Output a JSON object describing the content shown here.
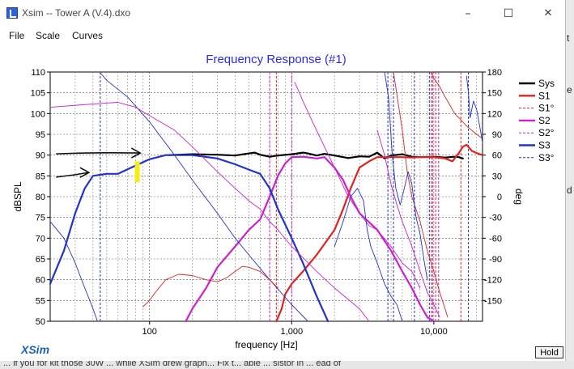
{
  "window": {
    "title": "Xsim -- Tower A (V.4).dxo",
    "minimize_glyph": "–",
    "maximize_glyph": "☐",
    "close_glyph": "✕"
  },
  "menu": [
    {
      "label": "File"
    },
    {
      "label": "Scale"
    },
    {
      "label": "Curves"
    }
  ],
  "brand": {
    "logo_text": "XSim"
  },
  "hold_button": {
    "label": "Hold"
  },
  "right_edge_chars": [
    "t",
    "e",
    "d"
  ],
  "bottom_partial_text": "... if you for kit those 30W ... while XSim drew graph... Fix t... able ... sistor in ... ead of",
  "colors": {
    "sys": "#000000",
    "s1": "#e0231e",
    "s2": "#cc22cc",
    "s3": "#2233cc",
    "title": "#2a2aee",
    "annotation_black": "#111111",
    "annotation_yellow": "#f5ee10"
  },
  "chart_data": {
    "type": "line",
    "title": "Frequency Response (#1)",
    "xlabel": "frequency [Hz]",
    "ylabel": "dBSPL",
    "ylabel_right": "deg",
    "x_scale": "log",
    "xlim": [
      20,
      22000
    ],
    "ylim": [
      50,
      110
    ],
    "ylim_right": [
      -180,
      180
    ],
    "x_tick_labels": [
      {
        "value": 100,
        "label": "100"
      },
      {
        "value": 1000,
        "label": "1,000"
      },
      {
        "value": 10000,
        "label": "10,000"
      }
    ],
    "y_ticks": [
      50,
      55,
      60,
      65,
      70,
      75,
      80,
      85,
      90,
      95,
      100,
      105,
      110
    ],
    "y_ticks_right": [
      -150,
      -120,
      -90,
      -60,
      -30,
      0,
      30,
      60,
      90,
      120,
      150,
      180
    ],
    "grid": true,
    "legend_position": "right",
    "legend": [
      {
        "label": "Sys",
        "color": "#000000",
        "style": "solid-thick"
      },
      {
        "label": "S1",
        "color": "#e0231e",
        "style": "solid-thick"
      },
      {
        "label": "S1°",
        "color": "#e0231e",
        "style": "dashed"
      },
      {
        "label": "S2",
        "color": "#cc22cc",
        "style": "solid-thick"
      },
      {
        "label": "S2°",
        "color": "#cc22cc",
        "style": "dashed"
      },
      {
        "label": "S3",
        "color": "#2233cc",
        "style": "solid-thick"
      },
      {
        "label": "S3°",
        "color": "#2233cc",
        "style": "dashed"
      }
    ],
    "series": [
      {
        "name": "Sys",
        "axis": "left",
        "color": "#000000",
        "width": 2.2,
        "points": [
          [
            135,
            90
          ],
          [
            200,
            90.2
          ],
          [
            300,
            90.1
          ],
          [
            400,
            89.9
          ],
          [
            500,
            90.4
          ],
          [
            550,
            90.6
          ],
          [
            600,
            90.1
          ],
          [
            700,
            89.6
          ],
          [
            800,
            89.9
          ],
          [
            1000,
            90.2
          ],
          [
            1200,
            90.6
          ],
          [
            1300,
            90.4
          ],
          [
            1500,
            89.9
          ],
          [
            1700,
            90.3
          ],
          [
            2000,
            89.9
          ],
          [
            2500,
            89.3
          ],
          [
            3000,
            89.7
          ],
          [
            3500,
            89.6
          ],
          [
            4000,
            90.6
          ],
          [
            4500,
            89.2
          ],
          [
            5000,
            89.9
          ],
          [
            6000,
            90.2
          ],
          [
            7000,
            89.6
          ],
          [
            8000,
            89.5
          ],
          [
            10000,
            89.6
          ],
          [
            12000,
            89.4
          ],
          [
            14000,
            89.6
          ],
          [
            15000,
            89.5
          ],
          [
            16000,
            89.2
          ]
        ]
      },
      {
        "name": "S1",
        "axis": "left",
        "color": "#e0231e",
        "width": 2.2,
        "points": [
          [
            780,
            50
          ],
          [
            850,
            53
          ],
          [
            900,
            56.5
          ],
          [
            1000,
            59
          ],
          [
            1200,
            62
          ],
          [
            1500,
            66
          ],
          [
            2000,
            72
          ],
          [
            2300,
            77
          ],
          [
            2600,
            82
          ],
          [
            3000,
            87
          ],
          [
            3500,
            88.5
          ],
          [
            4000,
            89.5
          ],
          [
            5000,
            89.5
          ],
          [
            6000,
            89.5
          ],
          [
            7000,
            89.4
          ],
          [
            8000,
            89.5
          ],
          [
            10000,
            89.5
          ],
          [
            12000,
            89.2
          ],
          [
            13500,
            88.5
          ],
          [
            15000,
            90.5
          ],
          [
            16000,
            92
          ],
          [
            17000,
            92.5
          ],
          [
            18500,
            91
          ],
          [
            20000,
            90.5
          ],
          [
            22000,
            90
          ]
        ]
      },
      {
        "name": "S2",
        "axis": "left",
        "color": "#cc22cc",
        "width": 2.2,
        "points": [
          [
            180,
            50
          ],
          [
            200,
            53
          ],
          [
            250,
            58
          ],
          [
            300,
            63
          ],
          [
            400,
            68
          ],
          [
            500,
            72
          ],
          [
            600,
            74.5
          ],
          [
            700,
            80
          ],
          [
            800,
            85
          ],
          [
            900,
            88
          ],
          [
            1000,
            89.5
          ],
          [
            1200,
            89.6
          ],
          [
            1500,
            89.2
          ],
          [
            1700,
            89.5
          ],
          [
            2000,
            87
          ],
          [
            2300,
            84
          ],
          [
            2600,
            80
          ],
          [
            3000,
            76
          ],
          [
            4000,
            72
          ],
          [
            5000,
            67
          ],
          [
            6000,
            62
          ],
          [
            7000,
            58
          ],
          [
            8000,
            54
          ],
          [
            9000,
            51
          ],
          [
            10000,
            50
          ]
        ]
      },
      {
        "name": "S3",
        "axis": "left",
        "color": "#2233cc",
        "width": 2.2,
        "points": [
          [
            20,
            59
          ],
          [
            25,
            67
          ],
          [
            30,
            76
          ],
          [
            35,
            82
          ],
          [
            40,
            85
          ],
          [
            50,
            85.5
          ],
          [
            60,
            85.5
          ],
          [
            80,
            87.5
          ],
          [
            100,
            89
          ],
          [
            130,
            90
          ],
          [
            200,
            90
          ],
          [
            300,
            89.2
          ],
          [
            400,
            87.8
          ],
          [
            500,
            86.5
          ],
          [
            600,
            85.5
          ],
          [
            700,
            82
          ],
          [
            800,
            77
          ],
          [
            1000,
            70
          ],
          [
            1200,
            64
          ],
          [
            1500,
            56
          ],
          [
            1800,
            50
          ]
        ]
      },
      {
        "name": "S3°",
        "axis": "left",
        "color": "#2233cc",
        "width": 0.9,
        "points": [
          [
            45,
            109.8
          ],
          [
            50,
            108
          ],
          [
            70,
            104
          ],
          [
            100,
            98
          ],
          [
            150,
            90
          ],
          [
            200,
            84
          ],
          [
            300,
            76
          ],
          [
            400,
            70
          ],
          [
            500,
            66
          ],
          [
            700,
            60
          ],
          [
            1000,
            54
          ],
          [
            1300,
            50
          ]
        ]
      },
      {
        "name": "S2°",
        "axis": "left",
        "color": "#cc22cc",
        "width": 0.9,
        "points": [
          [
            20,
            101.5
          ],
          [
            40,
            102.3
          ],
          [
            60,
            102.7
          ],
          [
            80,
            101.5
          ],
          [
            100,
            99.5
          ],
          [
            150,
            96
          ],
          [
            200,
            92
          ],
          [
            300,
            86
          ],
          [
            400,
            82
          ],
          [
            500,
            79
          ],
          [
            600,
            77
          ],
          [
            700,
            74
          ],
          [
            800,
            72
          ],
          [
            1000,
            68
          ],
          [
            1500,
            62
          ],
          [
            2000,
            58
          ],
          [
            3000,
            53
          ],
          [
            3500,
            50
          ]
        ]
      },
      {
        "name": "S1°",
        "axis": "left",
        "color": "#e0231e",
        "width": 0.9,
        "points": [
          [
            90,
            53.5
          ],
          [
            100,
            55
          ],
          [
            110,
            57
          ],
          [
            130,
            60
          ],
          [
            160,
            61.3
          ],
          [
            200,
            61
          ],
          [
            250,
            60
          ],
          [
            300,
            59.5
          ],
          [
            350,
            60.5
          ],
          [
            400,
            62
          ],
          [
            450,
            63.2
          ],
          [
            500,
            63
          ],
          [
            600,
            62
          ],
          [
            700,
            60
          ],
          [
            800,
            58
          ]
        ]
      },
      {
        "name": "S3°b",
        "axis": "left",
        "color": "#2233cc",
        "width": 0.9,
        "points": [
          [
            20,
            74
          ],
          [
            25,
            70
          ],
          [
            30,
            64
          ],
          [
            35,
            58
          ],
          [
            40,
            53
          ],
          [
            43,
            50
          ]
        ]
      },
      {
        "name": "S1°b",
        "axis": "left",
        "color": "#e0231e",
        "width": 0.9,
        "points": [
          [
            9500,
            110
          ],
          [
            10000,
            108.5
          ],
          [
            11000,
            106.5
          ],
          [
            12000,
            104
          ],
          [
            13000,
            102
          ],
          [
            14000,
            100
          ],
          [
            15000,
            99
          ],
          [
            17000,
            97
          ],
          [
            20000,
            95
          ],
          [
            22000,
            94
          ]
        ]
      },
      {
        "name": "S2°b",
        "axis": "left",
        "color": "#cc22cc",
        "width": 0.9,
        "points": [
          [
            1050,
            107.5
          ],
          [
            1100,
            106
          ],
          [
            1200,
            103
          ],
          [
            1400,
            98
          ],
          [
            1700,
            92
          ],
          [
            2000,
            87
          ],
          [
            2500,
            80
          ],
          [
            3000,
            76
          ],
          [
            3500,
            73
          ],
          [
            4000,
            72
          ],
          [
            5000,
            68
          ],
          [
            6000,
            64
          ],
          [
            7000,
            62
          ],
          [
            8000,
            58
          ]
        ]
      },
      {
        "name": "S1°c",
        "axis": "left",
        "color": "#e0231e",
        "width": 0.9,
        "points": [
          [
            5200,
            110
          ],
          [
            6000,
            96
          ],
          [
            6500,
            86
          ],
          [
            7000,
            80
          ],
          [
            8000,
            74
          ],
          [
            9000,
            67
          ],
          [
            10000,
            62
          ],
          [
            11000,
            57
          ],
          [
            12000,
            53
          ],
          [
            12500,
            51
          ]
        ]
      },
      {
        "name": "S3°c",
        "axis": "left",
        "color": "#2233cc",
        "width": 0.9,
        "points": [
          [
            2000,
            68
          ],
          [
            2300,
            74
          ],
          [
            2600,
            80
          ],
          [
            2900,
            82
          ],
          [
            3200,
            79
          ],
          [
            3400,
            72
          ],
          [
            3600,
            68
          ],
          [
            4000,
            64
          ],
          [
            4500,
            59
          ],
          [
            5000,
            56
          ],
          [
            5500,
            54
          ],
          [
            6000,
            50
          ]
        ]
      },
      {
        "name": "S3°d",
        "axis": "left",
        "color": "#2233cc",
        "width": 0.9,
        "points": [
          [
            4500,
            110
          ],
          [
            4800,
            104
          ],
          [
            5100,
            90
          ],
          [
            5400,
            82
          ],
          [
            5800,
            78
          ],
          [
            6200,
            82
          ],
          [
            6600,
            86
          ],
          [
            7000,
            83
          ],
          [
            7500,
            75
          ],
          [
            8000,
            71
          ],
          [
            8500,
            65
          ],
          [
            9000,
            60
          ]
        ]
      },
      {
        "name": "S3°e",
        "axis": "left",
        "color": "#2233cc",
        "width": 0.9,
        "points": [
          [
            17000,
            109
          ],
          [
            17500,
            105
          ],
          [
            18000,
            99
          ],
          [
            19000,
            103
          ],
          [
            20000,
            101
          ],
          [
            21000,
            97
          ],
          [
            22000,
            93
          ]
        ]
      },
      {
        "name": "S2°c",
        "axis": "left",
        "color": "#cc22cc",
        "width": 0.9,
        "points": [
          [
            4000,
            96
          ],
          [
            4500,
            90
          ],
          [
            5000,
            83
          ],
          [
            5500,
            78
          ],
          [
            6000,
            74
          ],
          [
            7000,
            68
          ],
          [
            8000,
            62
          ],
          [
            9000,
            57
          ],
          [
            10000,
            54
          ],
          [
            11000,
            51
          ]
        ]
      }
    ],
    "phase_wrap_lines": [
      {
        "color": "#2233cc",
        "x": [
          45,
          4750,
          5200,
          7300,
          9300,
          17500
        ]
      },
      {
        "color": "#cc22cc",
        "x": [
          700,
          1000,
          9800,
          10800
        ]
      },
      {
        "color": "#e0231e",
        "x": [
          780,
          9600,
          10300,
          15500
        ]
      }
    ],
    "annotations": [
      {
        "type": "hand-drawn-arrow",
        "color": "#111111",
        "from": [
          22,
          90.3
        ],
        "to": [
          85,
          90.5
        ]
      },
      {
        "type": "hand-drawn-arrow",
        "color": "#111111",
        "from": [
          22,
          84.7
        ],
        "to": [
          37,
          85.8
        ]
      },
      {
        "type": "marker-bar",
        "color": "#f5ee10",
        "x": 82,
        "y_from": 83.5,
        "y_to": 88.5
      }
    ]
  }
}
